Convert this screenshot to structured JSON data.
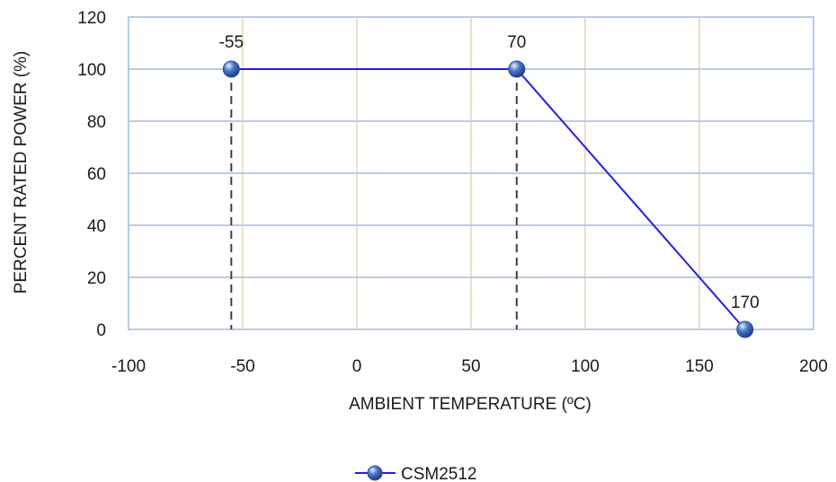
{
  "chart_data": {
    "type": "scatter",
    "title": "",
    "xlabel": "AMBIENT TEMPERATURE (ºC)",
    "ylabel": "PERCENT RATED POWER (%)",
    "xlim": [
      -100,
      200
    ],
    "ylim": [
      0,
      120
    ],
    "x_ticks": [
      -100,
      -50,
      0,
      50,
      100,
      150,
      200
    ],
    "y_ticks": [
      0,
      20,
      40,
      60,
      80,
      100,
      120
    ],
    "x_tick_labels": [
      "-100",
      "-50",
      "0",
      "50",
      "100",
      "150",
      "200"
    ],
    "y_tick_labels": [
      "0",
      "20",
      "40",
      "60",
      "80",
      "100",
      "120"
    ],
    "grid": true,
    "series": [
      {
        "name": "CSM2512",
        "color": "#1f1fe6",
        "marker_color": "#4a78c8",
        "points": [
          {
            "x": -55,
            "y": 100,
            "label": "-55"
          },
          {
            "x": 70,
            "y": 100,
            "label": "70"
          },
          {
            "x": 170,
            "y": 0,
            "label": "170"
          }
        ]
      }
    ],
    "dashed_drop_lines_x": [
      -55,
      70
    ],
    "legend_position": "bottom",
    "colors": {
      "vertical_grid": "#e8e1c8",
      "horizontal_grid": "#b8cce4",
      "plot_border": "#b8cce4",
      "drop_line": "#404040"
    }
  }
}
